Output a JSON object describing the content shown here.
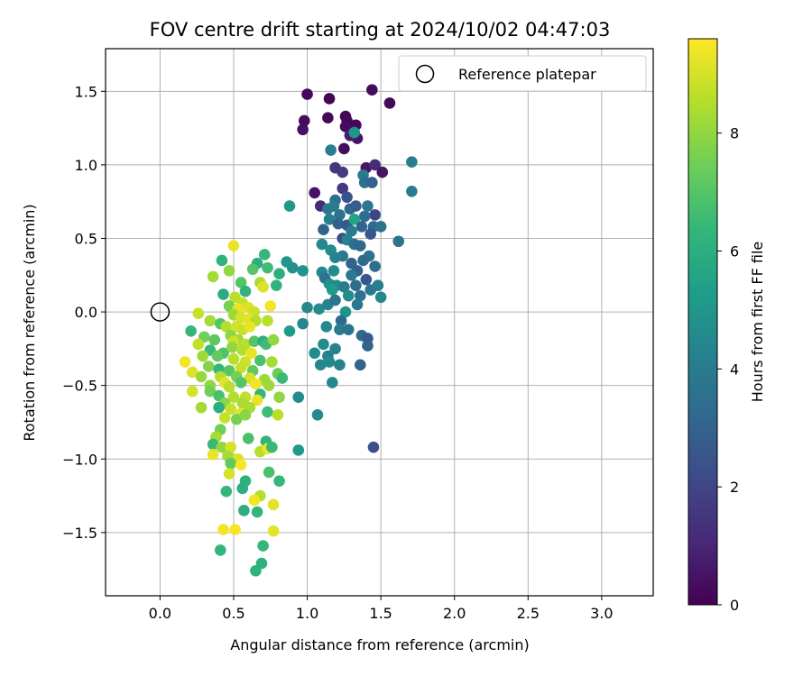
{
  "chart_data": {
    "type": "scatter",
    "title": "FOV centre drift starting at 2024/10/02 04:47:03",
    "xlabel": "Angular distance from reference (arcmin)",
    "ylabel": "Rotation from reference (arcmin)",
    "xlim": [
      -0.37,
      3.35
    ],
    "ylim": [
      -1.93,
      1.79
    ],
    "x_ticks": [
      0.0,
      0.5,
      1.0,
      1.5,
      2.0,
      2.5,
      3.0
    ],
    "x_tick_labels": [
      "0.0",
      "0.5",
      "1.0",
      "1.5",
      "2.0",
      "2.5",
      "3.0"
    ],
    "y_ticks": [
      -1.5,
      -1.0,
      -0.5,
      0.0,
      0.5,
      1.0,
      1.5
    ],
    "y_tick_labels": [
      "−1.5",
      "−1.0",
      "−0.5",
      "0.0",
      "0.5",
      "1.0",
      "1.5"
    ],
    "grid": true,
    "legend": {
      "placement": "top-right",
      "entries": [
        "Reference platepar"
      ]
    },
    "reference_point": {
      "x": 0.0,
      "y": 0.0
    },
    "colorbar": {
      "label": "Hours from first FF file",
      "range": [
        0,
        9.6
      ],
      "ticks": [
        0,
        2,
        4,
        6,
        8
      ],
      "tick_labels": [
        "0",
        "2",
        "4",
        "6",
        "8"
      ],
      "colormap": "viridis"
    },
    "points": [
      {
        "x": 1.0,
        "y": 1.48,
        "h": 0.2
      },
      {
        "x": 1.15,
        "y": 1.45,
        "h": 0.1
      },
      {
        "x": 1.44,
        "y": 1.51,
        "h": 0.3
      },
      {
        "x": 1.56,
        "y": 1.42,
        "h": 0.2
      },
      {
        "x": 0.98,
        "y": 1.3,
        "h": 0.3
      },
      {
        "x": 0.97,
        "y": 1.24,
        "h": 0.4
      },
      {
        "x": 1.14,
        "y": 1.32,
        "h": 0.2
      },
      {
        "x": 1.26,
        "y": 1.33,
        "h": 0.1
      },
      {
        "x": 1.27,
        "y": 1.3,
        "h": 0.2
      },
      {
        "x": 1.26,
        "y": 1.26,
        "h": 0.3
      },
      {
        "x": 1.33,
        "y": 1.27,
        "h": 0.2
      },
      {
        "x": 1.34,
        "y": 1.18,
        "h": 0.5
      },
      {
        "x": 1.29,
        "y": 1.2,
        "h": 0.8
      },
      {
        "x": 1.25,
        "y": 1.11,
        "h": 0.3
      },
      {
        "x": 1.32,
        "y": 1.22,
        "h": 5.0
      },
      {
        "x": 1.16,
        "y": 1.1,
        "h": 4.2
      },
      {
        "x": 1.4,
        "y": 0.98,
        "h": 0.6
      },
      {
        "x": 1.46,
        "y": 1.0,
        "h": 1.2
      },
      {
        "x": 1.51,
        "y": 0.95,
        "h": 0.5
      },
      {
        "x": 1.19,
        "y": 0.98,
        "h": 1.5
      },
      {
        "x": 1.24,
        "y": 0.95,
        "h": 1.7
      },
      {
        "x": 1.38,
        "y": 0.93,
        "h": 4.0
      },
      {
        "x": 1.39,
        "y": 0.88,
        "h": 3.5
      },
      {
        "x": 1.44,
        "y": 0.88,
        "h": 3.0
      },
      {
        "x": 1.71,
        "y": 1.02,
        "h": 4.1
      },
      {
        "x": 1.71,
        "y": 0.82,
        "h": 4.0
      },
      {
        "x": 1.05,
        "y": 0.81,
        "h": 0.5
      },
      {
        "x": 1.24,
        "y": 0.84,
        "h": 1.6
      },
      {
        "x": 1.19,
        "y": 0.76,
        "h": 3.5
      },
      {
        "x": 1.27,
        "y": 0.78,
        "h": 2.5
      },
      {
        "x": 1.09,
        "y": 0.72,
        "h": 1.2
      },
      {
        "x": 1.14,
        "y": 0.7,
        "h": 3.8
      },
      {
        "x": 1.18,
        "y": 0.72,
        "h": 4.0
      },
      {
        "x": 1.22,
        "y": 0.66,
        "h": 3.6
      },
      {
        "x": 1.29,
        "y": 0.7,
        "h": 3.2
      },
      {
        "x": 1.33,
        "y": 0.72,
        "h": 2.8
      },
      {
        "x": 1.41,
        "y": 0.72,
        "h": 3.8
      },
      {
        "x": 1.46,
        "y": 0.66,
        "h": 2.0
      },
      {
        "x": 1.39,
        "y": 0.65,
        "h": 3.4
      },
      {
        "x": 1.15,
        "y": 0.63,
        "h": 4.2
      },
      {
        "x": 1.21,
        "y": 0.6,
        "h": 3.0
      },
      {
        "x": 1.27,
        "y": 0.59,
        "h": 2.7
      },
      {
        "x": 1.32,
        "y": 0.63,
        "h": 5.6
      },
      {
        "x": 1.37,
        "y": 0.58,
        "h": 3.1
      },
      {
        "x": 1.45,
        "y": 0.58,
        "h": 3.2
      },
      {
        "x": 1.5,
        "y": 0.58,
        "h": 3.6
      },
      {
        "x": 1.43,
        "y": 0.53,
        "h": 2.6
      },
      {
        "x": 1.3,
        "y": 0.55,
        "h": 4.0
      },
      {
        "x": 0.88,
        "y": 0.72,
        "h": 5.1
      },
      {
        "x": 1.11,
        "y": 0.56,
        "h": 3.0
      },
      {
        "x": 1.24,
        "y": 0.5,
        "h": 2.1
      },
      {
        "x": 1.27,
        "y": 0.49,
        "h": 4.3
      },
      {
        "x": 1.32,
        "y": 0.46,
        "h": 3.5
      },
      {
        "x": 1.36,
        "y": 0.45,
        "h": 3.2
      },
      {
        "x": 1.62,
        "y": 0.48,
        "h": 3.7
      },
      {
        "x": 1.1,
        "y": 0.46,
        "h": 4.5
      },
      {
        "x": 1.16,
        "y": 0.42,
        "h": 4.6
      },
      {
        "x": 1.24,
        "y": 0.38,
        "h": 3.8
      },
      {
        "x": 1.19,
        "y": 0.37,
        "h": 4.3
      },
      {
        "x": 1.42,
        "y": 0.38,
        "h": 3.6
      },
      {
        "x": 1.3,
        "y": 0.33,
        "h": 3.0
      },
      {
        "x": 1.38,
        "y": 0.35,
        "h": 3.3
      },
      {
        "x": 1.34,
        "y": 0.28,
        "h": 2.9
      },
      {
        "x": 1.46,
        "y": 0.31,
        "h": 3.5
      },
      {
        "x": 1.1,
        "y": 0.27,
        "h": 4.4
      },
      {
        "x": 1.18,
        "y": 0.28,
        "h": 4.7
      },
      {
        "x": 1.3,
        "y": 0.25,
        "h": 3.9
      },
      {
        "x": 1.4,
        "y": 0.22,
        "h": 2.6
      },
      {
        "x": 1.12,
        "y": 0.23,
        "h": 3.6
      },
      {
        "x": 1.15,
        "y": 0.19,
        "h": 4.8
      },
      {
        "x": 1.2,
        "y": 0.18,
        "h": 4.6
      },
      {
        "x": 1.25,
        "y": 0.17,
        "h": 4.1
      },
      {
        "x": 1.33,
        "y": 0.18,
        "h": 3.4
      },
      {
        "x": 1.43,
        "y": 0.15,
        "h": 3.8
      },
      {
        "x": 1.48,
        "y": 0.18,
        "h": 4.1
      },
      {
        "x": 1.17,
        "y": 0.15,
        "h": 5.3
      },
      {
        "x": 1.28,
        "y": 0.11,
        "h": 4.7
      },
      {
        "x": 1.36,
        "y": 0.11,
        "h": 3.6
      },
      {
        "x": 1.5,
        "y": 0.1,
        "h": 4.5
      },
      {
        "x": 0.97,
        "y": 0.28,
        "h": 5.0
      },
      {
        "x": 0.9,
        "y": 0.3,
        "h": 4.8
      },
      {
        "x": 0.86,
        "y": 0.34,
        "h": 5.0
      },
      {
        "x": 1.0,
        "y": 0.03,
        "h": 4.4
      },
      {
        "x": 1.08,
        "y": 0.02,
        "h": 4.7
      },
      {
        "x": 1.14,
        "y": 0.05,
        "h": 4.3
      },
      {
        "x": 1.19,
        "y": 0.08,
        "h": 3.6
      },
      {
        "x": 1.26,
        "y": 0.0,
        "h": 5.0
      },
      {
        "x": 1.34,
        "y": 0.05,
        "h": 3.8
      },
      {
        "x": 1.23,
        "y": -0.06,
        "h": 3.3
      },
      {
        "x": 0.97,
        "y": -0.08,
        "h": 4.4
      },
      {
        "x": 1.13,
        "y": -0.1,
        "h": 4.5
      },
      {
        "x": 1.22,
        "y": -0.12,
        "h": 4.0
      },
      {
        "x": 1.28,
        "y": -0.12,
        "h": 3.6
      },
      {
        "x": 1.37,
        "y": -0.16,
        "h": 3.3
      },
      {
        "x": 1.41,
        "y": -0.18,
        "h": 2.7
      },
      {
        "x": 1.41,
        "y": -0.23,
        "h": 3.0
      },
      {
        "x": 0.88,
        "y": -0.13,
        "h": 5.2
      },
      {
        "x": 1.11,
        "y": -0.22,
        "h": 4.6
      },
      {
        "x": 1.19,
        "y": -0.25,
        "h": 4.3
      },
      {
        "x": 1.14,
        "y": -0.3,
        "h": 4.2
      },
      {
        "x": 1.05,
        "y": -0.28,
        "h": 4.6
      },
      {
        "x": 1.09,
        "y": -0.36,
        "h": 4.4
      },
      {
        "x": 1.15,
        "y": -0.34,
        "h": 4.6
      },
      {
        "x": 1.22,
        "y": -0.36,
        "h": 4.3
      },
      {
        "x": 1.36,
        "y": -0.36,
        "h": 3.0
      },
      {
        "x": 1.17,
        "y": -0.48,
        "h": 4.5
      },
      {
        "x": 0.94,
        "y": -0.58,
        "h": 4.6
      },
      {
        "x": 1.07,
        "y": -0.7,
        "h": 4.6
      },
      {
        "x": 1.45,
        "y": -0.92,
        "h": 2.3
      },
      {
        "x": 0.94,
        "y": -0.94,
        "h": 5.2
      },
      {
        "x": 0.5,
        "y": 0.45,
        "h": 9.3
      },
      {
        "x": 0.47,
        "y": 0.28,
        "h": 8.0
      },
      {
        "x": 0.36,
        "y": 0.24,
        "h": 8.3
      },
      {
        "x": 0.42,
        "y": 0.35,
        "h": 6.2
      },
      {
        "x": 0.66,
        "y": 0.33,
        "h": 6.0
      },
      {
        "x": 0.71,
        "y": 0.39,
        "h": 6.4
      },
      {
        "x": 0.63,
        "y": 0.29,
        "h": 7.0
      },
      {
        "x": 0.73,
        "y": 0.3,
        "h": 6.6
      },
      {
        "x": 0.68,
        "y": 0.2,
        "h": 8.4
      },
      {
        "x": 0.79,
        "y": 0.18,
        "h": 6.2
      },
      {
        "x": 0.81,
        "y": 0.26,
        "h": 6.0
      },
      {
        "x": 0.55,
        "y": 0.2,
        "h": 7.0
      },
      {
        "x": 0.7,
        "y": 0.17,
        "h": 9.1
      },
      {
        "x": 0.58,
        "y": 0.14,
        "h": 6.2
      },
      {
        "x": 0.43,
        "y": 0.12,
        "h": 5.9
      },
      {
        "x": 0.51,
        "y": 0.1,
        "h": 8.6
      },
      {
        "x": 0.56,
        "y": 0.06,
        "h": 8.8
      },
      {
        "x": 0.47,
        "y": 0.04,
        "h": 7.6
      },
      {
        "x": 0.53,
        "y": 0.02,
        "h": 9.3
      },
      {
        "x": 0.6,
        "y": 0.03,
        "h": 9.1
      },
      {
        "x": 0.64,
        "y": 0.0,
        "h": 8.9
      },
      {
        "x": 0.75,
        "y": 0.04,
        "h": 9.4
      },
      {
        "x": 0.5,
        "y": -0.02,
        "h": 8.2
      },
      {
        "x": 0.55,
        "y": -0.04,
        "h": 9.0
      },
      {
        "x": 0.6,
        "y": -0.05,
        "h": 9.2
      },
      {
        "x": 0.65,
        "y": -0.06,
        "h": 8.5
      },
      {
        "x": 0.73,
        "y": -0.06,
        "h": 8.6
      },
      {
        "x": 0.26,
        "y": -0.01,
        "h": 8.8
      },
      {
        "x": 0.34,
        "y": -0.06,
        "h": 8.3
      },
      {
        "x": 0.41,
        "y": -0.08,
        "h": 7.0
      },
      {
        "x": 0.45,
        "y": -0.1,
        "h": 8.5
      },
      {
        "x": 0.52,
        "y": -0.1,
        "h": 9.0
      },
      {
        "x": 0.56,
        "y": -0.12,
        "h": 8.8
      },
      {
        "x": 0.61,
        "y": -0.1,
        "h": 9.3
      },
      {
        "x": 0.21,
        "y": -0.13,
        "h": 6.3
      },
      {
        "x": 0.3,
        "y": -0.17,
        "h": 7.5
      },
      {
        "x": 0.37,
        "y": -0.19,
        "h": 7.2
      },
      {
        "x": 0.48,
        "y": -0.16,
        "h": 7.9
      },
      {
        "x": 0.53,
        "y": -0.19,
        "h": 8.2
      },
      {
        "x": 0.5,
        "y": -0.2,
        "h": 8.9
      },
      {
        "x": 0.58,
        "y": -0.22,
        "h": 8.6
      },
      {
        "x": 0.64,
        "y": -0.2,
        "h": 7.0
      },
      {
        "x": 0.7,
        "y": -0.2,
        "h": 6.0
      },
      {
        "x": 0.72,
        "y": -0.22,
        "h": 6.6
      },
      {
        "x": 0.77,
        "y": -0.19,
        "h": 8.0
      },
      {
        "x": 0.26,
        "y": -0.22,
        "h": 8.7
      },
      {
        "x": 0.34,
        "y": -0.26,
        "h": 6.5
      },
      {
        "x": 0.43,
        "y": -0.28,
        "h": 6.9
      },
      {
        "x": 0.49,
        "y": -0.24,
        "h": 8.0
      },
      {
        "x": 0.56,
        "y": -0.26,
        "h": 8.5
      },
      {
        "x": 0.62,
        "y": -0.28,
        "h": 9.3
      },
      {
        "x": 0.29,
        "y": -0.3,
        "h": 8.2
      },
      {
        "x": 0.39,
        "y": -0.3,
        "h": 7.3
      },
      {
        "x": 0.5,
        "y": -0.32,
        "h": 8.6
      },
      {
        "x": 0.58,
        "y": -0.34,
        "h": 8.9
      },
      {
        "x": 0.68,
        "y": -0.33,
        "h": 6.8
      },
      {
        "x": 0.76,
        "y": -0.34,
        "h": 8.3
      },
      {
        "x": 0.17,
        "y": -0.34,
        "h": 9.4
      },
      {
        "x": 0.33,
        "y": -0.37,
        "h": 7.8
      },
      {
        "x": 0.4,
        "y": -0.39,
        "h": 6.3
      },
      {
        "x": 0.47,
        "y": -0.4,
        "h": 7.1
      },
      {
        "x": 0.55,
        "y": -0.38,
        "h": 8.8
      },
      {
        "x": 0.63,
        "y": -0.4,
        "h": 7.2
      },
      {
        "x": 0.22,
        "y": -0.41,
        "h": 9.1
      },
      {
        "x": 0.28,
        "y": -0.44,
        "h": 8.1
      },
      {
        "x": 0.41,
        "y": -0.44,
        "h": 8.5
      },
      {
        "x": 0.52,
        "y": -0.44,
        "h": 7.6
      },
      {
        "x": 0.61,
        "y": -0.45,
        "h": 9.0
      },
      {
        "x": 0.71,
        "y": -0.46,
        "h": 8.2
      },
      {
        "x": 0.8,
        "y": -0.42,
        "h": 7.4
      },
      {
        "x": 0.83,
        "y": -0.45,
        "h": 6.5
      },
      {
        "x": 0.44,
        "y": -0.48,
        "h": 9.2
      },
      {
        "x": 0.47,
        "y": -0.51,
        "h": 8.6
      },
      {
        "x": 0.55,
        "y": -0.48,
        "h": 7.0
      },
      {
        "x": 0.65,
        "y": -0.49,
        "h": 9.4
      },
      {
        "x": 0.74,
        "y": -0.5,
        "h": 8.2
      },
      {
        "x": 0.34,
        "y": -0.5,
        "h": 8.0
      },
      {
        "x": 0.22,
        "y": -0.54,
        "h": 9.0
      },
      {
        "x": 0.34,
        "y": -0.54,
        "h": 7.5
      },
      {
        "x": 0.4,
        "y": -0.57,
        "h": 6.8
      },
      {
        "x": 0.5,
        "y": -0.58,
        "h": 8.5
      },
      {
        "x": 0.58,
        "y": -0.58,
        "h": 8.7
      },
      {
        "x": 0.68,
        "y": -0.56,
        "h": 6.3
      },
      {
        "x": 0.81,
        "y": -0.58,
        "h": 8.0
      },
      {
        "x": 0.44,
        "y": -0.62,
        "h": 7.9
      },
      {
        "x": 0.56,
        "y": -0.62,
        "h": 8.4
      },
      {
        "x": 0.66,
        "y": -0.6,
        "h": 9.3
      },
      {
        "x": 0.28,
        "y": -0.65,
        "h": 8.3
      },
      {
        "x": 0.4,
        "y": -0.65,
        "h": 6.0
      },
      {
        "x": 0.48,
        "y": -0.66,
        "h": 8.8
      },
      {
        "x": 0.55,
        "y": -0.69,
        "h": 9.2
      },
      {
        "x": 0.61,
        "y": -0.65,
        "h": 8.4
      },
      {
        "x": 0.44,
        "y": -0.72,
        "h": 8.8
      },
      {
        "x": 0.52,
        "y": -0.73,
        "h": 7.6
      },
      {
        "x": 0.58,
        "y": -0.7,
        "h": 7.9
      },
      {
        "x": 0.73,
        "y": -0.68,
        "h": 6.6
      },
      {
        "x": 0.8,
        "y": -0.7,
        "h": 8.6
      },
      {
        "x": 0.41,
        "y": -0.8,
        "h": 7.5
      },
      {
        "x": 0.38,
        "y": -0.85,
        "h": 8.3
      },
      {
        "x": 0.36,
        "y": -0.9,
        "h": 6.5
      },
      {
        "x": 0.42,
        "y": -0.92,
        "h": 8.0
      },
      {
        "x": 0.48,
        "y": -0.92,
        "h": 9.0
      },
      {
        "x": 0.6,
        "y": -0.86,
        "h": 6.8
      },
      {
        "x": 0.72,
        "y": -0.88,
        "h": 6.2
      },
      {
        "x": 0.36,
        "y": -0.97,
        "h": 9.3
      },
      {
        "x": 0.46,
        "y": -0.98,
        "h": 8.3
      },
      {
        "x": 0.53,
        "y": -1.0,
        "h": 9.1
      },
      {
        "x": 0.68,
        "y": -0.95,
        "h": 8.5
      },
      {
        "x": 0.73,
        "y": -0.93,
        "h": 9.3
      },
      {
        "x": 0.76,
        "y": -0.92,
        "h": 6.5
      },
      {
        "x": 0.48,
        "y": -1.03,
        "h": 7.2
      },
      {
        "x": 0.55,
        "y": -1.04,
        "h": 9.5
      },
      {
        "x": 0.47,
        "y": -1.1,
        "h": 9.0
      },
      {
        "x": 0.74,
        "y": -1.09,
        "h": 6.8
      },
      {
        "x": 0.81,
        "y": -1.15,
        "h": 6.4
      },
      {
        "x": 0.58,
        "y": -1.15,
        "h": 6.2
      },
      {
        "x": 0.56,
        "y": -1.2,
        "h": 6.0
      },
      {
        "x": 0.45,
        "y": -1.22,
        "h": 6.4
      },
      {
        "x": 0.68,
        "y": -1.25,
        "h": 8.5
      },
      {
        "x": 0.64,
        "y": -1.28,
        "h": 9.4
      },
      {
        "x": 0.77,
        "y": -1.31,
        "h": 9.2
      },
      {
        "x": 0.57,
        "y": -1.35,
        "h": 6.0
      },
      {
        "x": 0.66,
        "y": -1.36,
        "h": 6.3
      },
      {
        "x": 0.43,
        "y": -1.48,
        "h": 9.4
      },
      {
        "x": 0.51,
        "y": -1.48,
        "h": 9.5
      },
      {
        "x": 0.77,
        "y": -1.49,
        "h": 9.2
      },
      {
        "x": 0.7,
        "y": -1.59,
        "h": 6.4
      },
      {
        "x": 0.41,
        "y": -1.62,
        "h": 6.3
      },
      {
        "x": 0.69,
        "y": -1.71,
        "h": 6.1
      },
      {
        "x": 0.65,
        "y": -1.76,
        "h": 6.2
      }
    ]
  }
}
